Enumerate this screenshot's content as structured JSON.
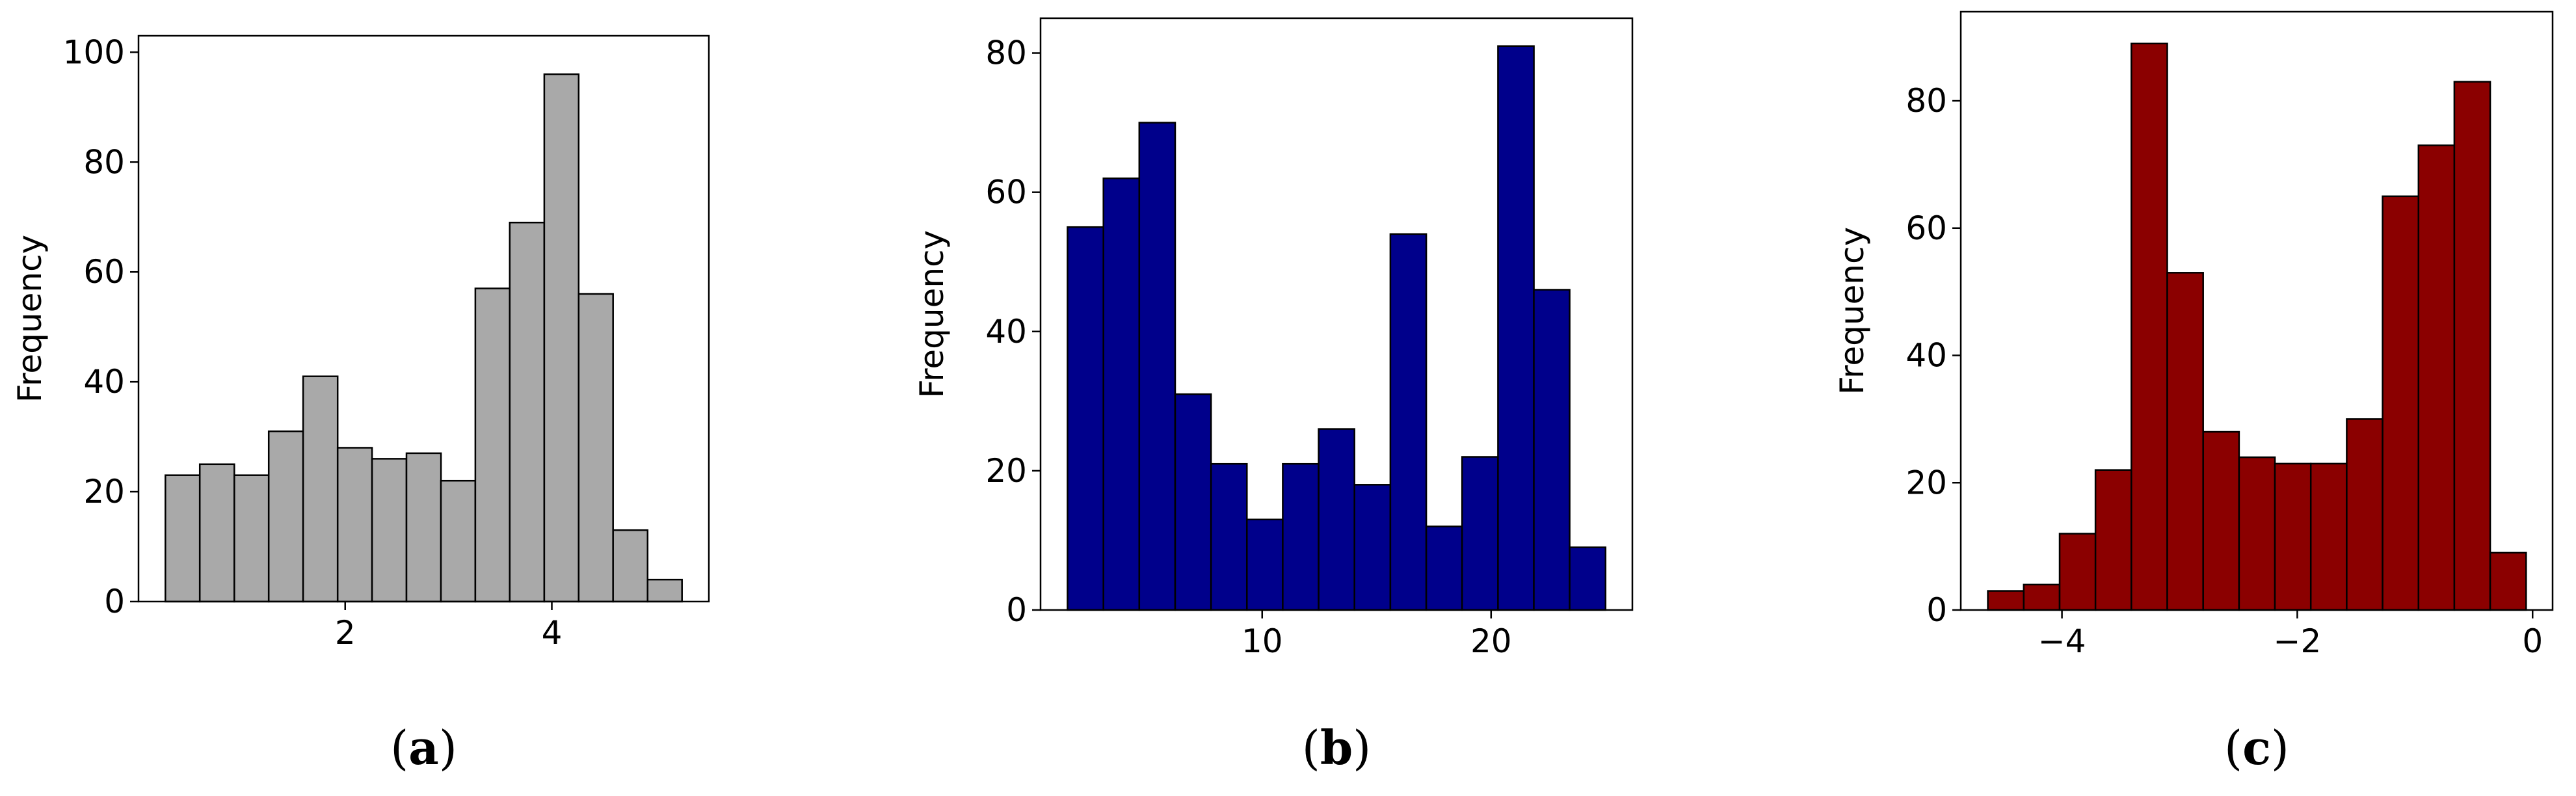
{
  "chart_data": [
    {
      "type": "bar",
      "panel_label": "a",
      "ylabel": "Frequency",
      "xlabel": "",
      "bar_color": "#A9A9A9",
      "bin_edges": [
        0.26,
        0.593,
        0.927,
        1.26,
        1.593,
        1.927,
        2.26,
        2.593,
        2.927,
        3.26,
        3.593,
        3.927,
        4.26,
        4.593,
        4.927,
        5.26
      ],
      "values": [
        23,
        25,
        23,
        31,
        41,
        28,
        26,
        27,
        22,
        57,
        69,
        96,
        56,
        13,
        4
      ],
      "xlim": [
        0.0,
        5.52
      ],
      "ylim": [
        0,
        103
      ],
      "xticks": [
        2,
        4
      ],
      "xtick_labels": [
        "2",
        "4"
      ],
      "yticks": [
        0,
        20,
        40,
        60,
        80,
        100
      ],
      "ytick_labels": [
        "0",
        "20",
        "40",
        "60",
        "80",
        "100"
      ]
    },
    {
      "type": "bar",
      "panel_label": "b",
      "ylabel": "Frequency",
      "xlabel": "",
      "bar_color": "#00008B",
      "bin_edges": [
        1.5,
        3.067,
        4.633,
        6.2,
        7.767,
        9.333,
        10.9,
        12.467,
        14.033,
        15.6,
        17.167,
        18.733,
        20.3,
        21.867,
        23.433,
        25.0
      ],
      "values": [
        55,
        62,
        70,
        31,
        21,
        13,
        21,
        26,
        18,
        54,
        12,
        22,
        81,
        46,
        9
      ],
      "xlim": [
        0.32,
        26.17
      ],
      "ylim": [
        0,
        85
      ],
      "xticks": [
        10,
        20
      ],
      "xtick_labels": [
        "10",
        "20"
      ],
      "yticks": [
        0,
        20,
        40,
        60,
        80
      ],
      "ytick_labels": [
        "0",
        "20",
        "40",
        "60",
        "80"
      ]
    },
    {
      "type": "bar",
      "panel_label": "c",
      "ylabel": "Frequency",
      "xlabel": "",
      "bar_color": "#8B0000",
      "bin_edges": [
        -4.63,
        -4.325,
        -4.02,
        -3.715,
        -3.41,
        -3.105,
        -2.8,
        -2.495,
        -2.19,
        -1.885,
        -1.58,
        -1.275,
        -0.97,
        -0.665,
        -0.36,
        -0.055
      ],
      "values": [
        3,
        4,
        12,
        22,
        89,
        53,
        28,
        24,
        23,
        23,
        30,
        65,
        73,
        83,
        9
      ],
      "xlim": [
        -4.86,
        0.17
      ],
      "ylim": [
        0,
        94
      ],
      "xticks": [
        -4,
        -2,
        0
      ],
      "xtick_labels": [
        "−4",
        "−2",
        "0"
      ],
      "yticks": [
        0,
        20,
        40,
        60,
        80
      ],
      "ytick_labels": [
        "0",
        "20",
        "40",
        "60",
        "80"
      ]
    }
  ]
}
